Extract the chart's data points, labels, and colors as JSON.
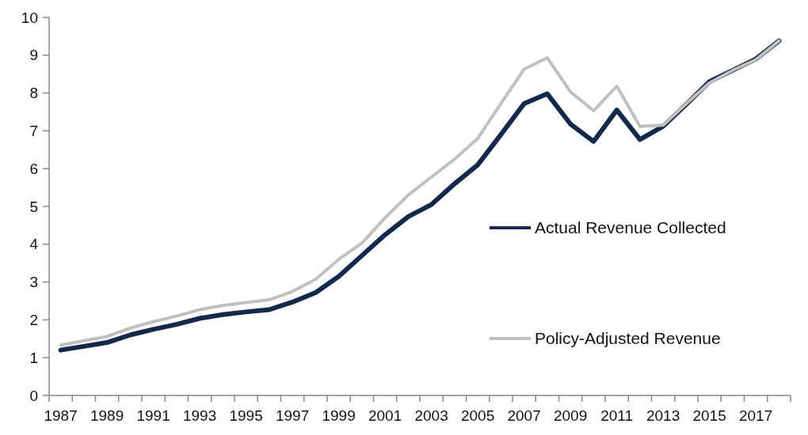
{
  "chart_data": {
    "type": "line",
    "categories": [
      "1987",
      null,
      "1989",
      null,
      "1991",
      null,
      "1993",
      null,
      "1995",
      null,
      "1997",
      null,
      "1999",
      null,
      "2001",
      null,
      "2003",
      null,
      "2005",
      null,
      "2007",
      null,
      "2009",
      null,
      "2011",
      null,
      "2013",
      null,
      "2015",
      null,
      "2017",
      null
    ],
    "series": [
      {
        "name": "Actual Revenue Collected",
        "color": "#13294b",
        "values": [
          1.2,
          1.3,
          1.4,
          1.6,
          1.75,
          1.88,
          2.04,
          2.14,
          2.21,
          2.27,
          2.47,
          2.72,
          3.15,
          3.7,
          4.25,
          4.73,
          5.05,
          5.6,
          6.1,
          6.9,
          7.72,
          7.98,
          7.18,
          6.72,
          7.55,
          6.77,
          7.12,
          7.7,
          8.3,
          8.6,
          8.9,
          9.38
        ]
      },
      {
        "name": "Policy-Adjusted Revenue",
        "color": "#c0c0c0",
        "values": [
          1.33,
          1.45,
          1.56,
          1.78,
          1.95,
          2.1,
          2.27,
          2.38,
          2.46,
          2.53,
          2.75,
          3.07,
          3.6,
          4.03,
          4.7,
          5.3,
          5.78,
          6.25,
          6.8,
          7.72,
          8.63,
          8.93,
          8.03,
          7.53,
          8.18,
          7.12,
          7.15,
          7.72,
          8.27,
          8.6,
          8.88,
          9.38
        ]
      }
    ],
    "ylim": [
      0,
      10
    ],
    "yticks": [
      0,
      1,
      2,
      3,
      4,
      5,
      6,
      7,
      8,
      9,
      10
    ],
    "legend": "right",
    "grid": false
  }
}
